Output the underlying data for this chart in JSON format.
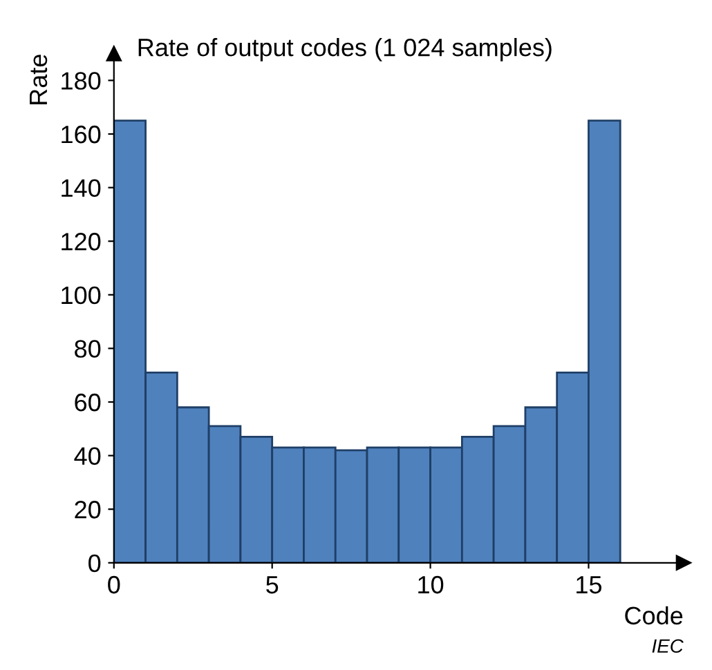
{
  "chart_data": {
    "type": "histogram",
    "title": "Rate of output codes (1 024 samples)",
    "xlabel": "Code",
    "ylabel": "Rate",
    "bins": [
      0,
      1,
      2,
      3,
      4,
      5,
      6,
      7,
      8,
      9,
      10,
      11,
      12,
      13,
      14,
      15,
      16
    ],
    "values": [
      165,
      71,
      58,
      51,
      47,
      43,
      43,
      42,
      43,
      43,
      43,
      47,
      51,
      58,
      71,
      165
    ],
    "color": "#4f81bd",
    "xlim": [
      0,
      18
    ],
    "ylim": [
      0,
      190
    ],
    "xticks": [
      0,
      5,
      10,
      15
    ],
    "yticks": [
      0,
      20,
      40,
      60,
      80,
      100,
      120,
      140,
      160,
      180
    ],
    "grid": false,
    "legend": false,
    "annotations": [
      "IEC"
    ]
  }
}
